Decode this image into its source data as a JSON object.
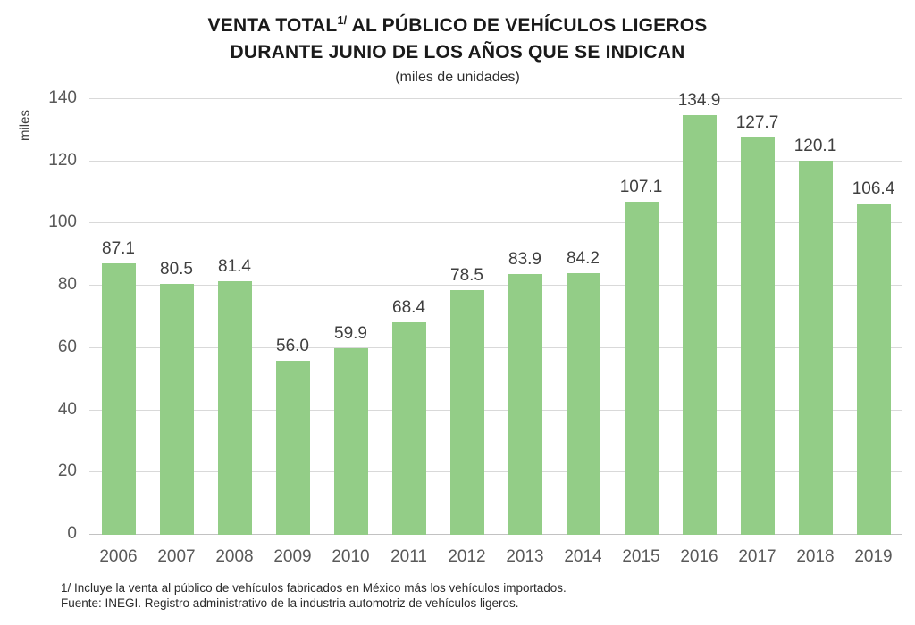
{
  "title": {
    "line1_pre": "VENTA TOTAL",
    "line1_sup": "1/",
    "line1_post": " AL PÚBLICO DE VEHÍCULOS LIGEROS",
    "line2": "DURANTE JUNIO DE LOS AÑOS QUE SE INDICAN",
    "subtitle": "(miles de unidades)"
  },
  "chart_data": {
    "type": "bar",
    "title": "VENTA TOTAL 1/ AL PÚBLICO DE VEHÍCULOS LIGEROS DURANTE JUNIO DE LOS AÑOS QUE SE INDICAN",
    "subtitle": "(miles de unidades)",
    "categories": [
      "2006",
      "2007",
      "2008",
      "2009",
      "2010",
      "2011",
      "2012",
      "2013",
      "2014",
      "2015",
      "2016",
      "2017",
      "2018",
      "2019"
    ],
    "values": [
      87.1,
      80.5,
      81.4,
      56.0,
      59.9,
      68.4,
      78.5,
      83.9,
      84.2,
      107.1,
      134.9,
      127.7,
      120.1,
      106.4
    ],
    "xlabel": "",
    "ylabel": "miles",
    "ylim": [
      0,
      140
    ],
    "ytick_step": 20,
    "grid": true,
    "legend": false,
    "bar_color": "#93CD87",
    "gridline_color": "#D9D9D9",
    "axis_line_color": "#C2C2C2",
    "tick_label_color": "#595959",
    "value_label_color": "#3F3F3F"
  },
  "footnotes": [
    "1/ Incluye la venta al público de vehículos fabricados en México más los vehículos importados.",
    "Fuente: INEGI. Registro administrativo de la industria automotriz de vehículos ligeros."
  ]
}
